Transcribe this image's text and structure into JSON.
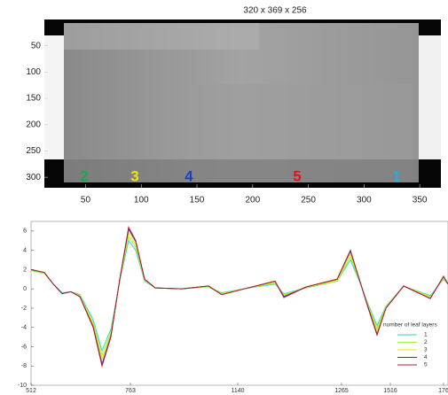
{
  "chart_data": [
    {
      "type": "image",
      "title": "320 x 369 x 256",
      "xlim": [
        13,
        369
      ],
      "ylim": [
        0,
        320
      ],
      "xticks": [
        50,
        100,
        150,
        200,
        250,
        300,
        350
      ],
      "yticks": [
        50,
        100,
        150,
        200,
        250,
        300
      ],
      "annotations": [
        {
          "text": "2",
          "color": "#1aa84a"
        },
        {
          "text": "3",
          "color": "#f2e600"
        },
        {
          "text": "4",
          "color": "#1a3fc8"
        },
        {
          "text": "5",
          "color": "#e0141e"
        },
        {
          "text": "1",
          "color": "#27a9e1"
        }
      ]
    },
    {
      "type": "line",
      "xlim": [
        0,
        470
      ],
      "ylim": [
        -10,
        7
      ],
      "yticks": [
        -10,
        -8,
        -6,
        -4,
        -2,
        0,
        2,
        4,
        6
      ],
      "xticks": [
        {
          "value": 0,
          "label": "512"
        },
        {
          "value": 112,
          "label": "763"
        },
        {
          "value": 233,
          "label": "1140"
        },
        {
          "value": 350,
          "label": "1265"
        },
        {
          "value": 405,
          "label": "1516"
        },
        {
          "value": 465,
          "label": "176"
        }
      ],
      "legend_title": "number of leaf layers",
      "x": [
        0,
        15,
        25,
        35,
        45,
        55,
        70,
        80,
        90,
        100,
        110,
        118,
        128,
        140,
        170,
        200,
        215,
        240,
        275,
        285,
        310,
        345,
        360,
        370,
        380,
        390,
        400,
        420,
        450,
        465,
        470
      ],
      "series": [
        {
          "name": "1",
          "color": "#33d6c8",
          "values": [
            1.9,
            1.6,
            0.5,
            -0.4,
            -0.3,
            -0.6,
            -3.2,
            -6.4,
            -4.2,
            0.8,
            5.0,
            4.0,
            0.8,
            0.1,
            0.0,
            0.2,
            -0.4,
            0.0,
            0.5,
            -0.5,
            0.1,
            0.8,
            3.0,
            0.8,
            -1.6,
            -3.8,
            -1.8,
            0.3,
            -0.7,
            1.0,
            0.5
          ]
        },
        {
          "name": "2",
          "color": "#a8f040",
          "values": [
            1.9,
            1.6,
            0.5,
            -0.5,
            -0.3,
            -0.7,
            -3.5,
            -6.9,
            -4.5,
            0.9,
            5.4,
            4.3,
            0.9,
            0.1,
            0.0,
            0.2,
            -0.5,
            0.0,
            0.6,
            -0.6,
            0.1,
            0.8,
            3.3,
            0.9,
            -1.7,
            -4.1,
            -1.9,
            0.3,
            -0.8,
            1.1,
            0.5
          ]
        },
        {
          "name": "3",
          "color": "#e8e800",
          "values": [
            2.0,
            1.7,
            0.5,
            -0.5,
            -0.3,
            -0.7,
            -3.7,
            -7.3,
            -4.7,
            0.9,
            5.8,
            4.6,
            0.9,
            0.1,
            0.0,
            0.3,
            -0.5,
            0.0,
            0.7,
            -0.7,
            0.2,
            0.9,
            3.6,
            0.9,
            -1.8,
            -4.4,
            -1.9,
            0.3,
            -0.9,
            1.2,
            0.5
          ]
        },
        {
          "name": "4",
          "color": "#3030d0",
          "values": [
            2.0,
            1.7,
            0.5,
            -0.5,
            -0.3,
            -0.8,
            -3.9,
            -7.8,
            -4.9,
            1.0,
            6.2,
            4.9,
            1.0,
            0.1,
            0.0,
            0.3,
            -0.6,
            0.0,
            0.8,
            -0.8,
            0.2,
            1.0,
            4.0,
            1.0,
            -1.9,
            -4.7,
            -2.0,
            0.3,
            -1.0,
            1.3,
            0.5
          ]
        },
        {
          "name": "5",
          "color": "#b0202a",
          "values": [
            2.0,
            1.7,
            0.5,
            -0.5,
            -0.3,
            -0.8,
            -4.0,
            -8.0,
            -5.0,
            1.0,
            6.4,
            5.0,
            1.0,
            0.1,
            0.0,
            0.3,
            -0.6,
            0.0,
            0.8,
            -0.9,
            0.2,
            1.0,
            3.9,
            1.0,
            -2.0,
            -4.8,
            -2.0,
            0.3,
            -1.0,
            1.3,
            0.5
          ]
        }
      ]
    }
  ]
}
